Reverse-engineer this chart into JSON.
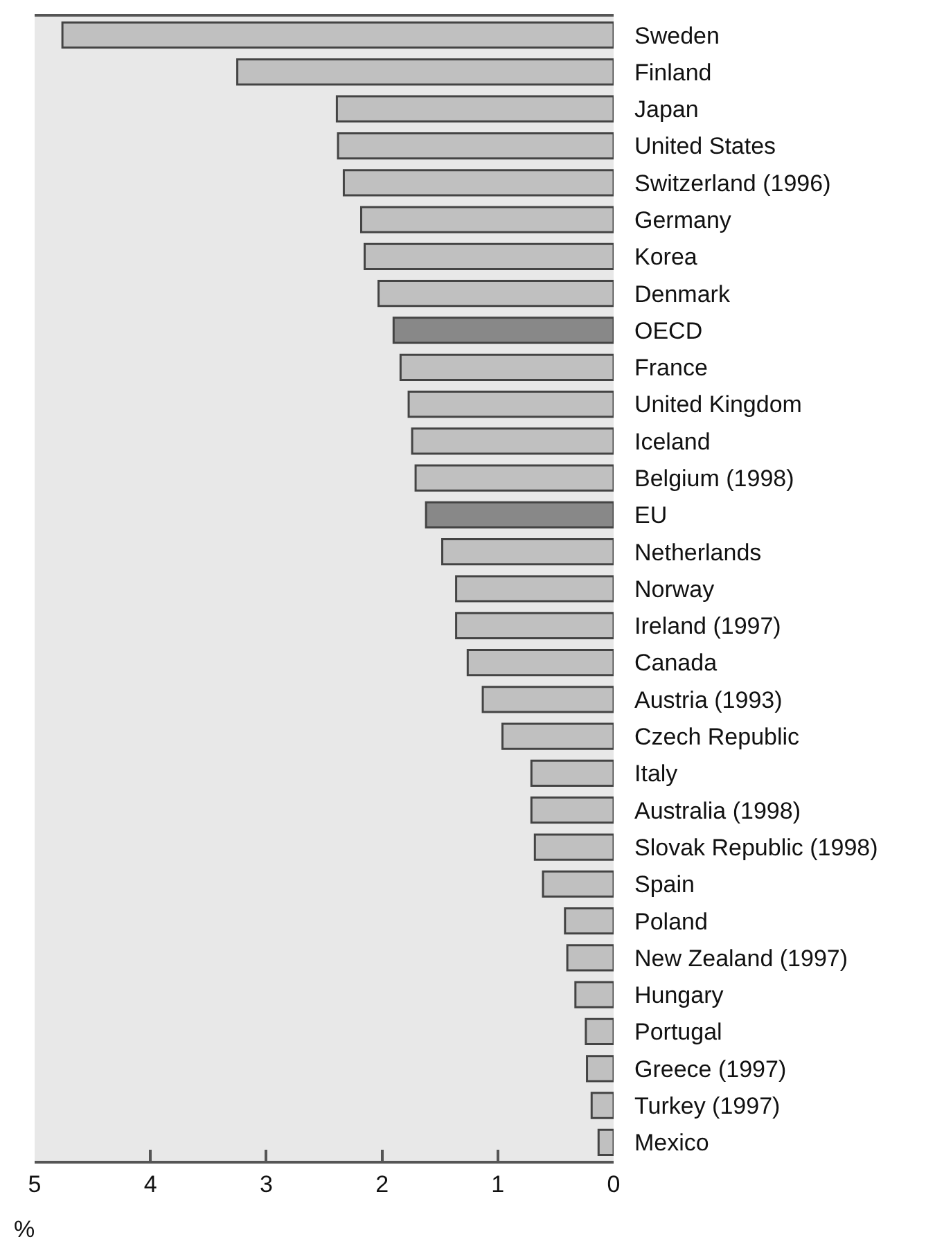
{
  "chart_data": {
    "type": "bar",
    "orientation": "horizontal",
    "xlabel": "%",
    "categories": [
      "Sweden",
      "Finland",
      "Japan",
      "United States",
      "Switzerland (1996)",
      "Germany",
      "Korea",
      "Denmark",
      "OECD",
      "France",
      "United Kingdom",
      "Iceland",
      "Belgium (1998)",
      "EU",
      "Netherlands",
      "Norway",
      "Ireland (1997)",
      "Canada",
      "Austria (1993)",
      "Czech Republic",
      "Italy",
      "Australia (1998)",
      "Slovak Republic (1998)",
      "Spain",
      "Poland",
      "New Zealand (1997)",
      "Hungary",
      "Portugal",
      "Greece (1997)",
      "Turkey (1997)",
      "Mexico"
    ],
    "values": [
      4.76,
      3.25,
      2.39,
      2.38,
      2.33,
      2.18,
      2.15,
      2.03,
      1.9,
      1.84,
      1.77,
      1.74,
      1.71,
      1.62,
      1.48,
      1.36,
      1.36,
      1.26,
      1.13,
      0.96,
      0.71,
      0.71,
      0.68,
      0.61,
      0.42,
      0.4,
      0.33,
      0.24,
      0.23,
      0.19,
      0.13
    ],
    "colors": [
      "#c0c0c0",
      "#c0c0c0",
      "#c0c0c0",
      "#c0c0c0",
      "#c0c0c0",
      "#c0c0c0",
      "#c0c0c0",
      "#c0c0c0",
      "#888888",
      "#c0c0c0",
      "#c0c0c0",
      "#c0c0c0",
      "#c0c0c0",
      "#888888",
      "#c0c0c0",
      "#c0c0c0",
      "#c0c0c0",
      "#c0c0c0",
      "#c0c0c0",
      "#c0c0c0",
      "#c0c0c0",
      "#c0c0c0",
      "#c0c0c0",
      "#c0c0c0",
      "#c0c0c0",
      "#c0c0c0",
      "#c0c0c0",
      "#c0c0c0",
      "#c0c0c0",
      "#c0c0c0",
      "#c0c0c0"
    ],
    "xlim": [
      5,
      0
    ],
    "xticks": [
      5,
      4,
      3,
      2,
      1,
      0
    ],
    "grid": false,
    "legend": false
  }
}
